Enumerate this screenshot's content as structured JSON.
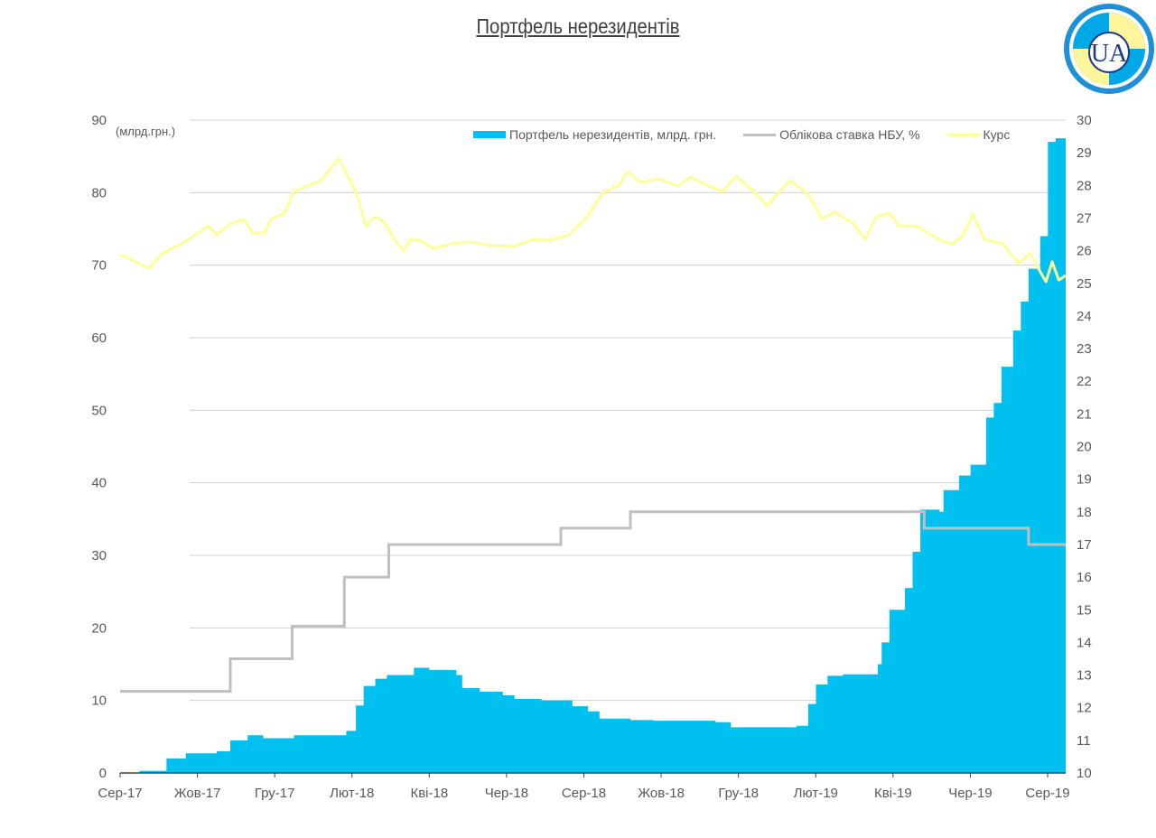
{
  "title": "Портфель нерезидентів",
  "logo_text": "UA",
  "chart_data": {
    "type": "area+line",
    "title": "Портфель нерезидентів",
    "left_axis_unit": "(млрд.грн.)",
    "ylim_left": [
      0,
      90
    ],
    "yticks_left": [
      0,
      10,
      20,
      30,
      40,
      50,
      60,
      70,
      80,
      90
    ],
    "ylim_right": [
      10,
      30
    ],
    "yticks_right": [
      10,
      11,
      12,
      13,
      14,
      15,
      16,
      17,
      18,
      19,
      20,
      21,
      22,
      23,
      24,
      25,
      26,
      27,
      28,
      29,
      30
    ],
    "x_unit": "months since Sep-2017",
    "xlim": [
      0,
      24.46
    ],
    "xtick_labels": [
      "Сер-17",
      "Жов-17",
      "Гру-17",
      "Лют-18",
      "Кві-18",
      "Чер-18",
      "Сер-18",
      "Жов-18",
      "Гру-18",
      "Лют-19",
      "Кві-19",
      "Чер-19",
      "Сер-19"
    ],
    "grid": true,
    "legend_position": "top-right",
    "colors": {
      "portfolio": "#00C0EF",
      "rate": "#BFBFBF",
      "kurs": "#FFFF99",
      "grid": "#D0D0D0"
    },
    "series": [
      {
        "name": "Портфель нерезидентів, млрд. грн.",
        "axis": "left",
        "kind": "step-area",
        "points": [
          [
            0,
            0
          ],
          [
            0.5,
            0.3
          ],
          [
            1.2,
            2
          ],
          [
            1.7,
            2.7
          ],
          [
            2.5,
            3.0
          ],
          [
            2.85,
            4.5
          ],
          [
            3.3,
            5.2
          ],
          [
            3.7,
            4.8
          ],
          [
            4.5,
            5.2
          ],
          [
            5.85,
            5.8
          ],
          [
            6.1,
            9.3
          ],
          [
            6.3,
            12
          ],
          [
            6.6,
            13
          ],
          [
            6.9,
            13.5
          ],
          [
            7.6,
            14.5
          ],
          [
            8.0,
            14.2
          ],
          [
            8.7,
            13.5
          ],
          [
            8.85,
            11.7
          ],
          [
            9.3,
            11.2
          ],
          [
            9.9,
            10.7
          ],
          [
            10.2,
            10.2
          ],
          [
            10.9,
            10
          ],
          [
            11.7,
            9.2
          ],
          [
            12.1,
            8.5
          ],
          [
            12.4,
            7.5
          ],
          [
            13.2,
            7.3
          ],
          [
            13.8,
            7.2
          ],
          [
            15.4,
            7.0
          ],
          [
            15.8,
            6.3
          ],
          [
            17.5,
            6.5
          ],
          [
            17.8,
            9.5
          ],
          [
            18.0,
            12.2
          ],
          [
            18.3,
            13.4
          ],
          [
            18.7,
            13.6
          ],
          [
            19.2,
            13.6
          ],
          [
            19.6,
            15
          ],
          [
            19.7,
            18
          ],
          [
            19.9,
            22.5
          ],
          [
            20.3,
            25.5
          ],
          [
            20.5,
            30.5
          ],
          [
            20.7,
            36.3
          ],
          [
            21.2,
            36
          ],
          [
            21.3,
            39
          ],
          [
            21.7,
            41
          ],
          [
            22.0,
            42.5
          ],
          [
            22.4,
            49
          ],
          [
            22.6,
            51
          ],
          [
            22.8,
            56
          ],
          [
            23.1,
            61
          ],
          [
            23.3,
            65
          ],
          [
            23.5,
            69.5
          ],
          [
            23.8,
            74
          ],
          [
            24.0,
            87
          ],
          [
            24.2,
            87.5
          ],
          [
            24.46,
            87
          ]
        ]
      },
      {
        "name": "Облікова ставка НБУ, %",
        "axis": "right",
        "kind": "step-line",
        "points": [
          [
            0,
            12.5
          ],
          [
            2.85,
            13.5
          ],
          [
            4.45,
            14.5
          ],
          [
            5.8,
            16
          ],
          [
            6.95,
            17
          ],
          [
            11.4,
            17.5
          ],
          [
            13.2,
            18
          ],
          [
            20.8,
            17.5
          ],
          [
            23.5,
            17
          ],
          [
            24.46,
            17
          ]
        ]
      },
      {
        "name": "Курс",
        "axis": "right",
        "kind": "line",
        "points": [
          [
            0,
            25.88
          ],
          [
            0.4,
            25.66
          ],
          [
            0.75,
            25.46
          ],
          [
            1.1,
            25.93
          ],
          [
            1.57,
            26.2
          ],
          [
            2.03,
            26.54
          ],
          [
            2.27,
            26.76
          ],
          [
            2.5,
            26.49
          ],
          [
            2.85,
            26.82
          ],
          [
            3.2,
            26.96
          ],
          [
            3.43,
            26.54
          ],
          [
            3.74,
            26.54
          ],
          [
            3.9,
            26.96
          ],
          [
            4.25,
            27.15
          ],
          [
            4.49,
            27.81
          ],
          [
            4.84,
            27.98
          ],
          [
            5.19,
            28.15
          ],
          [
            5.42,
            28.48
          ],
          [
            5.65,
            28.84
          ],
          [
            5.89,
            28.28
          ],
          [
            6.12,
            27.73
          ],
          [
            6.36,
            26.76
          ],
          [
            6.59,
            27.04
          ],
          [
            6.82,
            26.9
          ],
          [
            7.1,
            26.35
          ],
          [
            7.34,
            25.99
          ],
          [
            7.52,
            26.35
          ],
          [
            7.76,
            26.32
          ],
          [
            8.1,
            26.07
          ],
          [
            8.57,
            26.21
          ],
          [
            9.04,
            26.27
          ],
          [
            9.63,
            26.15
          ],
          [
            10.21,
            26.13
          ],
          [
            10.68,
            26.35
          ],
          [
            11.14,
            26.32
          ],
          [
            11.61,
            26.49
          ],
          [
            12.08,
            27.04
          ],
          [
            12.5,
            27.79
          ],
          [
            12.9,
            28.01
          ],
          [
            13.13,
            28.42
          ],
          [
            13.48,
            28.09
          ],
          [
            13.95,
            28.2
          ],
          [
            14.42,
            27.98
          ],
          [
            14.77,
            28.26
          ],
          [
            15.23,
            27.98
          ],
          [
            15.58,
            27.81
          ],
          [
            15.93,
            28.28
          ],
          [
            16.4,
            27.81
          ],
          [
            16.75,
            27.37
          ],
          [
            16.99,
            27.73
          ],
          [
            17.34,
            28.15
          ],
          [
            17.8,
            27.73
          ],
          [
            18.15,
            26.98
          ],
          [
            18.5,
            27.18
          ],
          [
            18.97,
            26.82
          ],
          [
            19.28,
            26.35
          ],
          [
            19.56,
            27.04
          ],
          [
            19.91,
            27.15
          ],
          [
            20.14,
            26.76
          ],
          [
            20.61,
            26.76
          ],
          [
            20.96,
            26.49
          ],
          [
            21.31,
            26.27
          ],
          [
            21.54,
            26.21
          ],
          [
            21.78,
            26.43
          ],
          [
            22.06,
            27.12
          ],
          [
            22.36,
            26.35
          ],
          [
            22.83,
            26.21
          ],
          [
            23.25,
            25.6
          ],
          [
            23.53,
            25.93
          ],
          [
            23.76,
            25.44
          ],
          [
            23.95,
            25.05
          ],
          [
            24.11,
            25.66
          ],
          [
            24.28,
            25.1
          ],
          [
            24.46,
            25.24
          ]
        ]
      }
    ]
  }
}
